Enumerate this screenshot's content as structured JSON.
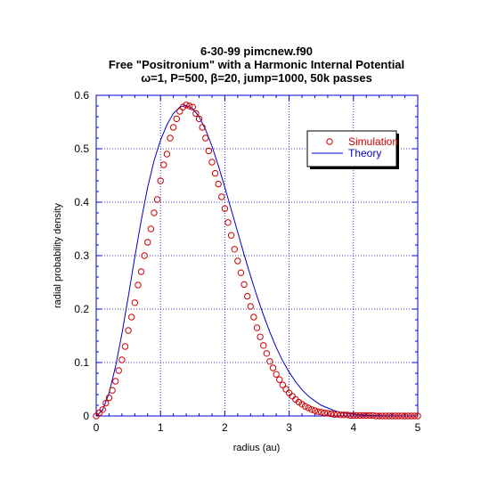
{
  "chart_data": {
    "type": "scatter",
    "title_lines": [
      "6-30-99 pimcnew.f90",
      "Free \"Positronium\" with a Harmonic Internal Potential",
      "ω=1, P=500, β=20, jump=1000, 50k passes"
    ],
    "xlabel": "radius (au)",
    "ylabel": "radial probability density",
    "xlim": [
      0,
      5
    ],
    "ylim": [
      0,
      0.6
    ],
    "xticks": [
      "0",
      "1",
      "2",
      "3",
      "4",
      "5"
    ],
    "yticks": [
      "0",
      "0.1",
      "0.2",
      "0.3",
      "0.4",
      "0.5",
      "0.6"
    ],
    "grid": true,
    "legend_position": "top-right",
    "series": [
      {
        "name": "Simulation",
        "kind": "markers",
        "marker": "open-circle",
        "color": "#cc0000",
        "x": [
          0.0,
          0.05,
          0.1,
          0.15,
          0.2,
          0.25,
          0.3,
          0.35,
          0.4,
          0.45,
          0.5,
          0.55,
          0.6,
          0.65,
          0.7,
          0.75,
          0.8,
          0.85,
          0.9,
          0.95,
          1.0,
          1.05,
          1.1,
          1.15,
          1.2,
          1.25,
          1.3,
          1.35,
          1.4,
          1.45,
          1.5,
          1.55,
          1.6,
          1.65,
          1.7,
          1.75,
          1.8,
          1.85,
          1.9,
          1.95,
          2.0,
          2.05,
          2.1,
          2.15,
          2.2,
          2.25,
          2.3,
          2.35,
          2.4,
          2.45,
          2.5,
          2.55,
          2.6,
          2.65,
          2.7,
          2.75,
          2.8,
          2.85,
          2.9,
          2.95,
          3.0,
          3.05,
          3.1,
          3.15,
          3.2,
          3.25,
          3.3,
          3.35,
          3.4,
          3.45,
          3.5,
          3.55,
          3.6,
          3.65,
          3.7,
          3.75,
          3.8,
          3.85,
          3.9,
          3.95,
          4.0,
          4.05,
          4.1,
          4.15,
          4.2,
          4.25,
          4.3,
          4.35,
          4.4,
          4.45,
          4.5,
          4.55,
          4.6,
          4.65,
          4.7,
          4.75,
          4.8,
          4.85,
          4.9,
          4.95,
          5.0
        ],
        "y": [
          0.0,
          0.006,
          0.012,
          0.024,
          0.034,
          0.048,
          0.065,
          0.085,
          0.105,
          0.13,
          0.16,
          0.185,
          0.212,
          0.245,
          0.27,
          0.3,
          0.325,
          0.35,
          0.38,
          0.405,
          0.44,
          0.47,
          0.49,
          0.52,
          0.54,
          0.556,
          0.57,
          0.578,
          0.582,
          0.58,
          0.578,
          0.566,
          0.556,
          0.54,
          0.52,
          0.496,
          0.475,
          0.454,
          0.434,
          0.41,
          0.388,
          0.362,
          0.338,
          0.312,
          0.29,
          0.268,
          0.246,
          0.224,
          0.205,
          0.185,
          0.165,
          0.148,
          0.132,
          0.117,
          0.102,
          0.09,
          0.078,
          0.068,
          0.058,
          0.05,
          0.043,
          0.037,
          0.031,
          0.026,
          0.022,
          0.018,
          0.015,
          0.012,
          0.01,
          0.008,
          0.007,
          0.006,
          0.005,
          0.004,
          0.003,
          0.003,
          0.002,
          0.002,
          0.002,
          0.001,
          0.001,
          0.001,
          0.001,
          0.001,
          0.001,
          0.001,
          0.001,
          0.0,
          0.0,
          0.0,
          0.0,
          0.0,
          0.0,
          0.0,
          0.0,
          0.0,
          0.0,
          0.0,
          0.0,
          0.0,
          0.0
        ]
      },
      {
        "name": "Theory",
        "kind": "line",
        "color": "#0000cc",
        "x": [
          0.0,
          0.1,
          0.2,
          0.3,
          0.4,
          0.5,
          0.6,
          0.7,
          0.8,
          0.9,
          1.0,
          1.1,
          1.2,
          1.3,
          1.4,
          1.5,
          1.6,
          1.7,
          1.8,
          1.9,
          2.0,
          2.1,
          2.2,
          2.3,
          2.4,
          2.5,
          2.6,
          2.7,
          2.8,
          2.9,
          3.0,
          3.1,
          3.2,
          3.3,
          3.4,
          3.5,
          3.6,
          3.7,
          3.8,
          3.9,
          4.0,
          4.2,
          4.4,
          4.6,
          4.8,
          5.0
        ],
        "y": [
          0.0,
          0.011,
          0.043,
          0.092,
          0.154,
          0.224,
          0.297,
          0.366,
          0.428,
          0.478,
          0.516,
          0.545,
          0.566,
          0.578,
          0.581,
          0.575,
          0.56,
          0.536,
          0.505,
          0.468,
          0.428,
          0.386,
          0.344,
          0.302,
          0.262,
          0.224,
          0.189,
          0.157,
          0.128,
          0.103,
          0.082,
          0.064,
          0.049,
          0.037,
          0.028,
          0.02,
          0.015,
          0.01,
          0.007,
          0.005,
          0.003,
          0.0015,
          0.0007,
          0.0003,
          0.0001,
          0.0
        ]
      }
    ]
  }
}
